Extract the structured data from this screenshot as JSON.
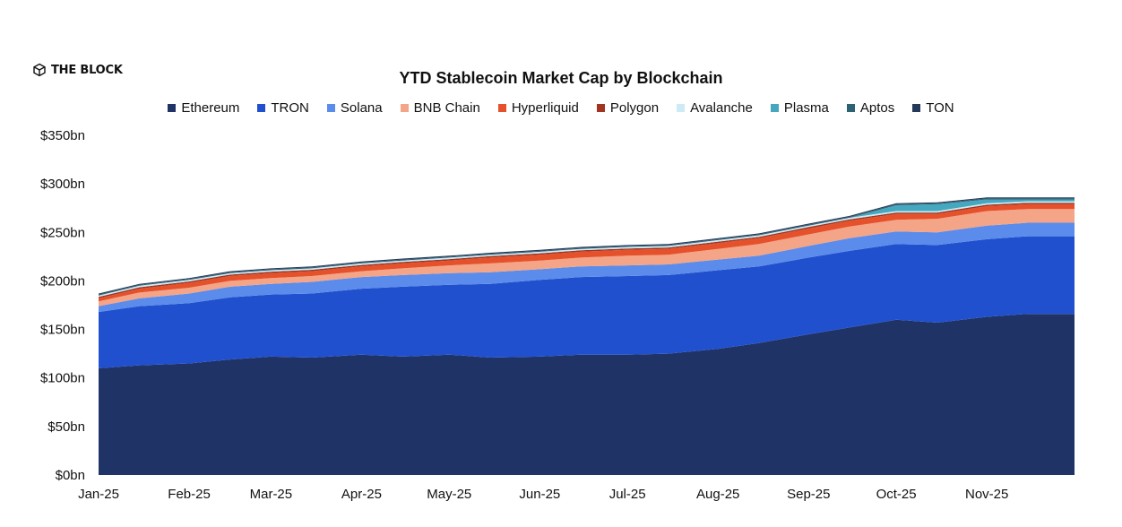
{
  "brand": {
    "name": "THE BLOCK",
    "icon": "the-block-cube-icon"
  },
  "chart_data": {
    "type": "area",
    "stacked": true,
    "title": "YTD Stablecoin Market Cap by Blockchain",
    "xlabel": "",
    "ylabel": "",
    "ylim": [
      0,
      350
    ],
    "yticks": [
      0,
      50,
      100,
      150,
      200,
      250,
      300,
      350
    ],
    "ytick_labels": [
      "$0bn",
      "$50bn",
      "$100bn",
      "$150bn",
      "$200bn",
      "$250bn",
      "$300bn",
      "$350bn"
    ],
    "xticks": [
      "Jan-25",
      "Feb-25",
      "Mar-25",
      "Apr-25",
      "May-25",
      "Jun-25",
      "Jul-25",
      "Aug-25",
      "Sep-25",
      "Oct-25",
      "Nov-25"
    ],
    "legend_position": "top-center",
    "x": [
      "2025-01-01",
      "2025-01-15",
      "2025-02-01",
      "2025-02-15",
      "2025-03-01",
      "2025-03-15",
      "2025-04-01",
      "2025-04-15",
      "2025-05-01",
      "2025-05-15",
      "2025-06-01",
      "2025-06-15",
      "2025-07-01",
      "2025-07-15",
      "2025-08-01",
      "2025-08-15",
      "2025-09-01",
      "2025-09-15",
      "2025-10-01",
      "2025-10-15",
      "2025-11-01",
      "2025-11-15",
      "2025-12-01"
    ],
    "series": [
      {
        "name": "Ethereum",
        "color": "#1F3366",
        "values": [
          110,
          113,
          115,
          119,
          122,
          121,
          124,
          122,
          124,
          121,
          122,
          124,
          124,
          125,
          130,
          136,
          145,
          152,
          160,
          157,
          163,
          166,
          166
        ]
      },
      {
        "name": "TRON",
        "color": "#2150CF",
        "values": [
          58,
          61,
          62,
          64,
          64,
          66,
          68,
          72,
          72,
          76,
          79,
          80,
          81,
          81,
          81,
          79,
          79,
          79,
          78,
          80,
          80,
          80,
          80
        ]
      },
      {
        "name": "Solana",
        "color": "#5B8CEB",
        "values": [
          6,
          8,
          10,
          11,
          11,
          12,
          12,
          12,
          12,
          12,
          11,
          11,
          11,
          11,
          11,
          11,
          12,
          13,
          13,
          13,
          14,
          14,
          14
        ]
      },
      {
        "name": "BNB Chain",
        "color": "#F4A487",
        "values": [
          5,
          6,
          6,
          6,
          6,
          6,
          6,
          7,
          8,
          9,
          9,
          9,
          10,
          10,
          11,
          12,
          12,
          12,
          12,
          14,
          15,
          14,
          14
        ]
      },
      {
        "name": "Hyperliquid",
        "color": "#E5512B",
        "values": [
          3,
          4,
          5,
          5,
          5,
          5,
          5,
          5,
          5,
          6,
          6,
          6,
          6,
          6,
          6,
          6,
          6,
          6,
          6,
          5,
          5,
          5,
          5
        ]
      },
      {
        "name": "Polygon",
        "color": "#A33520",
        "values": [
          1.5,
          1.5,
          1.5,
          1.5,
          1.5,
          1.5,
          1.5,
          1.5,
          1.5,
          1.5,
          1.5,
          1.5,
          1.5,
          1.5,
          1.5,
          1.5,
          1.5,
          1.5,
          1.5,
          1.5,
          1.5,
          1.5,
          1.5
        ]
      },
      {
        "name": "Avalanche",
        "color": "#CDEBF6",
        "values": [
          1.5,
          1.5,
          1.5,
          1.5,
          1.5,
          1.5,
          1.5,
          1.5,
          1.5,
          1.5,
          1.5,
          1.5,
          1.5,
          1.5,
          1.5,
          1.5,
          1.5,
          1.5,
          1.5,
          1.5,
          1.5,
          1.5,
          1.5
        ]
      },
      {
        "name": "Plasma",
        "color": "#45A8BE",
        "values": [
          0,
          0,
          0,
          0,
          0,
          0,
          0,
          0,
          0,
          0,
          0,
          0,
          0,
          0,
          0,
          0,
          0,
          0,
          6,
          7,
          4,
          2,
          2
        ]
      },
      {
        "name": "Aptos",
        "color": "#2E6272",
        "values": [
          1,
          1,
          1,
          1,
          1,
          1,
          1,
          1,
          1,
          1,
          1,
          1,
          1,
          1,
          1,
          1,
          1,
          1,
          1,
          1,
          1,
          1,
          1
        ]
      },
      {
        "name": "TON",
        "color": "#26395A",
        "values": [
          1,
          1,
          1,
          1,
          1,
          1,
          1,
          1,
          1,
          1,
          1,
          1,
          1,
          1,
          1,
          1,
          1,
          1,
          1,
          1,
          1,
          1,
          1
        ]
      }
    ]
  }
}
